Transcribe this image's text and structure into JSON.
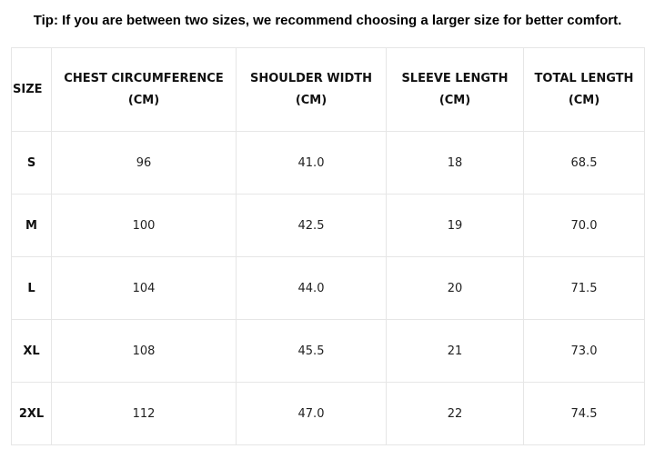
{
  "tip": "Tip: If you are between two sizes, we recommend choosing a larger size for better comfort.",
  "headers": [
    {
      "line1": "SIZE",
      "line2": ""
    },
    {
      "line1": "CHEST CIRCUMFERENCE",
      "line2": "(CM)"
    },
    {
      "line1": "SHOULDER WIDTH",
      "line2": "(CM)"
    },
    {
      "line1": "SLEEVE LENGTH",
      "line2": "(CM)"
    },
    {
      "line1": "TOTAL LENGTH",
      "line2": "(CM)"
    }
  ],
  "rows": [
    [
      "S",
      "96",
      "41.0",
      "18",
      "68.5"
    ],
    [
      "M",
      "100",
      "42.5",
      "19",
      "70.0"
    ],
    [
      "L",
      "104",
      "44.0",
      "20",
      "71.5"
    ],
    [
      "XL",
      "108",
      "45.5",
      "21",
      "73.0"
    ],
    [
      "2XL",
      "112",
      "47.0",
      "22",
      "74.5"
    ]
  ]
}
